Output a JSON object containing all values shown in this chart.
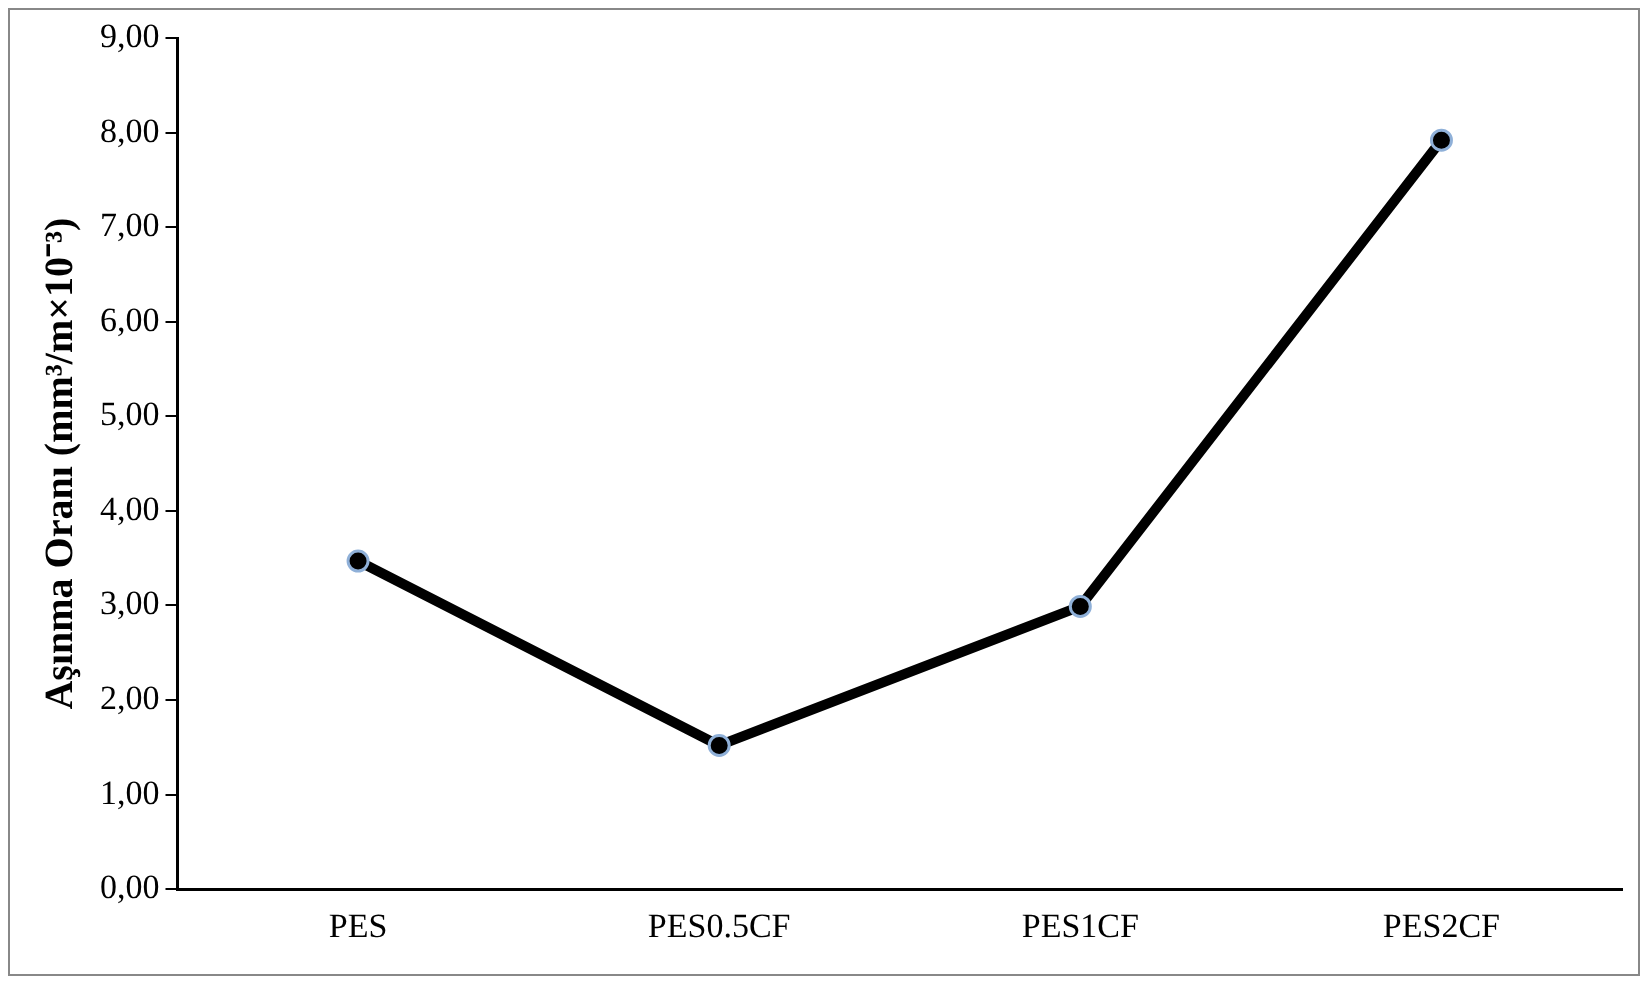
{
  "chart_data": {
    "type": "line",
    "ylabel": "Aşınma Oranı (mm³/m×10⁻³)",
    "categories": [
      "PES",
      "PES0.5CF",
      "PES1CF",
      "PES2CF"
    ],
    "series": [
      {
        "color": "#000000",
        "values": [
          3.47,
          1.52,
          2.99,
          7.92
        ]
      }
    ],
    "ylim": [
      0,
      9
    ],
    "yticks": [
      {
        "value": 0,
        "label": "0,00"
      },
      {
        "value": 1,
        "label": "1,00"
      },
      {
        "value": 2,
        "label": "2,00"
      },
      {
        "value": 3,
        "label": "3,00"
      },
      {
        "value": 4,
        "label": "4,00"
      },
      {
        "value": 5,
        "label": "5,00"
      },
      {
        "value": 6,
        "label": "6,00"
      },
      {
        "value": 7,
        "label": "7,00"
      },
      {
        "value": 8,
        "label": "8,00"
      },
      {
        "value": 9,
        "label": "9,00"
      }
    ],
    "grid": false,
    "legend": false,
    "marker": "circle",
    "line_style": "solid"
  }
}
